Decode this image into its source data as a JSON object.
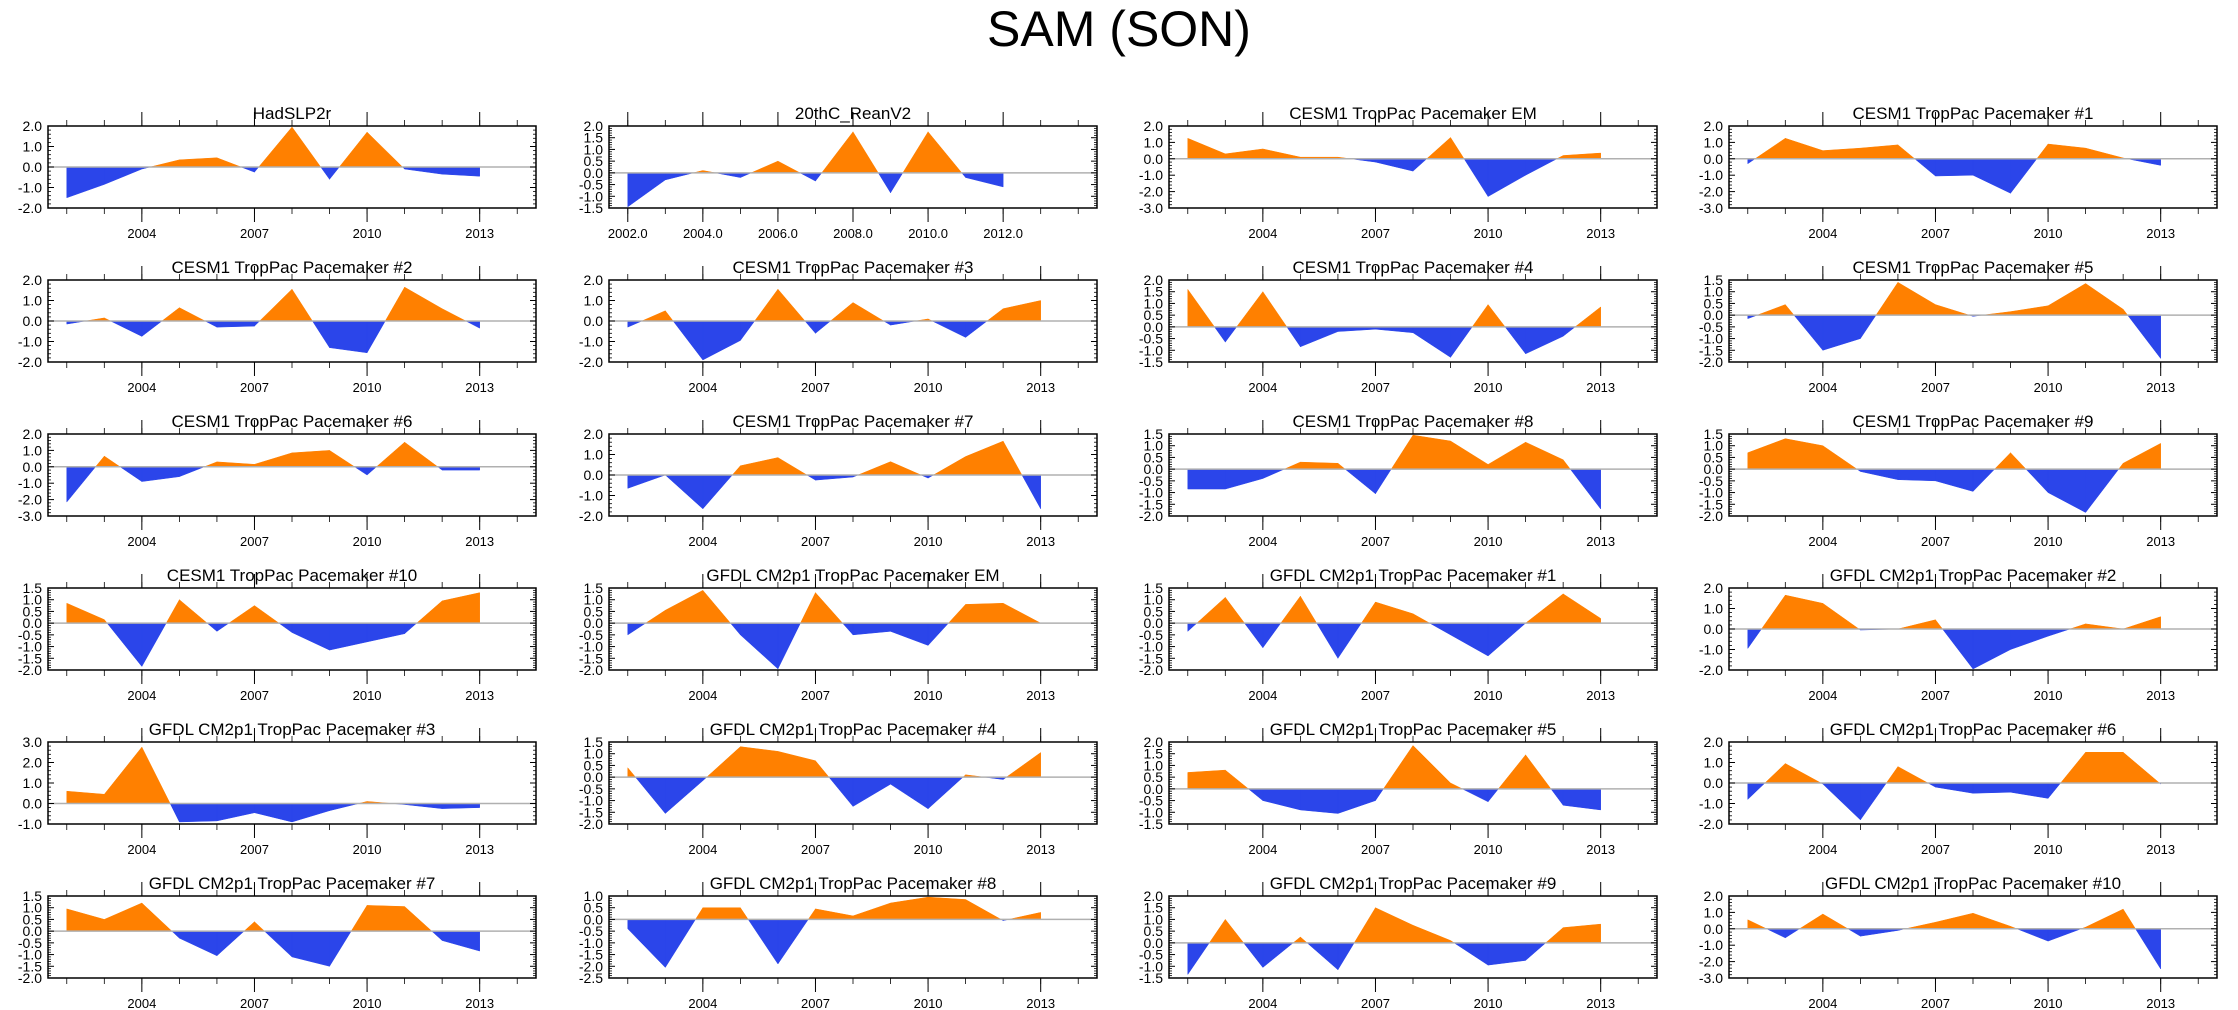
{
  "title": "SAM (SON)",
  "colors": {
    "positive": "#ff8000",
    "negative": "#2b45ea",
    "axis": "#000000",
    "zero_line": "#b0b0b0"
  },
  "chart_data": {
    "type": "area",
    "title": "SAM (SON)",
    "layout": "6 rows x 4 columns",
    "x": [
      2002,
      2003,
      2004,
      2005,
      2006,
      2007,
      2008,
      2009,
      2010,
      2011,
      2012,
      2013
    ],
    "xlim": [
      2001.5,
      2014.5
    ],
    "fill_above_zero": "orange",
    "fill_below_zero": "blue",
    "panels": [
      {
        "title": "HadSLP2r",
        "ylim": [
          -2.0,
          2.0
        ],
        "yticks": [
          "2.0",
          "1.0",
          "0.0",
          "-1.0",
          "-2.0"
        ],
        "xticks": [
          "2004",
          "2007",
          "2010",
          "2013"
        ],
        "values": [
          -1.5,
          -0.85,
          -0.1,
          0.35,
          0.45,
          -0.25,
          1.95,
          -0.6,
          1.7,
          -0.1,
          -0.35,
          -0.45
        ]
      },
      {
        "title": "20thC_ReanV2",
        "ylim": [
          -1.5,
          2.0
        ],
        "yticks": [
          "2.0",
          "1.5",
          "1.0",
          "0.5",
          "0.0",
          "-0.5",
          "-1.0",
          "-1.5"
        ],
        "xticks": [
          "2002.0",
          "2004.0",
          "2006.0",
          "2008.0",
          "2010.0",
          "2012.0"
        ],
        "values": [
          -1.45,
          -0.3,
          0.1,
          -0.2,
          0.5,
          -0.35,
          1.75,
          -0.85,
          1.75,
          -0.2,
          -0.6
        ]
      },
      {
        "title": "CESM1 TropPac Pacemaker EM",
        "ylim": [
          -3.0,
          2.0
        ],
        "yticks": [
          "2.0",
          "1.0",
          "0.0",
          "-1.0",
          "-2.0",
          "-3.0"
        ],
        "xticks": [
          "2004",
          "2007",
          "2010",
          "2013"
        ],
        "values": [
          1.25,
          0.3,
          0.6,
          0.1,
          0.1,
          -0.2,
          -0.75,
          1.3,
          -2.3,
          -1.0,
          0.2,
          0.35
        ]
      },
      {
        "title": "CESM1 TropPac Pacemaker #1",
        "ylim": [
          -3.0,
          2.0
        ],
        "yticks": [
          "2.0",
          "1.0",
          "0.0",
          "-1.0",
          "-2.0",
          "-3.0"
        ],
        "xticks": [
          "2004",
          "2007",
          "2010",
          "2013"
        ],
        "values": [
          -0.3,
          1.25,
          0.5,
          0.65,
          0.85,
          -1.05,
          -1.0,
          -2.1,
          0.9,
          0.65,
          0.05,
          -0.4
        ]
      },
      {
        "title": "CESM1 TropPac Pacemaker #2",
        "ylim": [
          -2.0,
          2.0
        ],
        "yticks": [
          "2.0",
          "1.0",
          "0.0",
          "-1.0",
          "-2.0"
        ],
        "xticks": [
          "2004",
          "2007",
          "2010",
          "2013"
        ],
        "values": [
          -0.15,
          0.15,
          -0.75,
          0.65,
          -0.3,
          -0.25,
          1.55,
          -1.3,
          -1.55,
          1.65,
          0.6,
          -0.35
        ]
      },
      {
        "title": "CESM1 TropPac Pacemaker #3",
        "ylim": [
          -2.0,
          2.0
        ],
        "yticks": [
          "2.0",
          "1.0",
          "0.0",
          "-1.0",
          "-2.0"
        ],
        "xticks": [
          "2004",
          "2007",
          "2010",
          "2013"
        ],
        "values": [
          -0.3,
          0.5,
          -1.9,
          -0.95,
          1.55,
          -0.6,
          0.9,
          -0.2,
          0.1,
          -0.8,
          0.6,
          1.0
        ]
      },
      {
        "title": "CESM1 TropPac Pacemaker #4",
        "ylim": [
          -1.5,
          2.0
        ],
        "yticks": [
          "2.0",
          "1.5",
          "1.0",
          "0.5",
          "0.0",
          "-0.5",
          "-1.0",
          "-1.5"
        ],
        "xticks": [
          "2004",
          "2007",
          "2010",
          "2013"
        ],
        "values": [
          1.6,
          -0.65,
          1.5,
          -0.85,
          -0.2,
          -0.1,
          -0.25,
          -1.3,
          0.95,
          -1.15,
          -0.4,
          0.85
        ]
      },
      {
        "title": "CESM1 TropPac Pacemaker #5",
        "ylim": [
          -2.0,
          1.5
        ],
        "yticks": [
          "1.5",
          "1.0",
          "0.5",
          "0.0",
          "-0.5",
          "-1.0",
          "-1.5",
          "-2.0"
        ],
        "xticks": [
          "2004",
          "2007",
          "2010",
          "2013"
        ],
        "values": [
          -0.15,
          0.45,
          -1.5,
          -1.0,
          1.4,
          0.45,
          -0.05,
          0.15,
          0.4,
          1.35,
          0.25,
          -1.85
        ]
      },
      {
        "title": "CESM1 TropPac Pacemaker #6",
        "ylim": [
          -3.0,
          2.0
        ],
        "yticks": [
          "2.0",
          "1.0",
          "0.0",
          "-1.0",
          "-2.0",
          "-3.0"
        ],
        "xticks": [
          "2004",
          "2007",
          "2010",
          "2013"
        ],
        "values": [
          -2.15,
          0.65,
          -0.9,
          -0.6,
          0.3,
          0.15,
          0.85,
          1.0,
          -0.5,
          1.5,
          -0.2,
          -0.2
        ]
      },
      {
        "title": "CESM1 TropPac Pacemaker #7",
        "ylim": [
          -2.0,
          2.0
        ],
        "yticks": [
          "2.0",
          "1.0",
          "0.0",
          "-1.0",
          "-2.0"
        ],
        "xticks": [
          "2004",
          "2007",
          "2010",
          "2013"
        ],
        "values": [
          -0.65,
          0.0,
          -1.65,
          0.45,
          0.85,
          -0.25,
          -0.1,
          0.65,
          -0.15,
          0.9,
          1.65,
          -1.65
        ]
      },
      {
        "title": "CESM1 TropPac Pacemaker #8",
        "ylim": [
          -2.0,
          1.5
        ],
        "yticks": [
          "1.5",
          "1.0",
          "0.5",
          "0.0",
          "-0.5",
          "-1.0",
          "-1.5",
          "-2.0"
        ],
        "xticks": [
          "2004",
          "2007",
          "2010",
          "2013"
        ],
        "values": [
          -0.85,
          -0.85,
          -0.4,
          0.3,
          0.25,
          -1.05,
          1.45,
          1.2,
          0.2,
          1.15,
          0.4,
          -1.7
        ]
      },
      {
        "title": "CESM1 TropPac Pacemaker #9",
        "ylim": [
          -2.0,
          1.5
        ],
        "yticks": [
          "1.5",
          "1.0",
          "0.5",
          "0.0",
          "-0.5",
          "-1.0",
          "-1.5",
          "-2.0"
        ],
        "xticks": [
          "2004",
          "2007",
          "2010",
          "2013"
        ],
        "values": [
          0.7,
          1.3,
          1.0,
          -0.1,
          -0.45,
          -0.5,
          -0.95,
          0.7,
          -1.0,
          -1.85,
          0.25,
          1.1
        ]
      },
      {
        "title": "CESM1 TropPac Pacemaker #10",
        "ylim": [
          -2.0,
          1.5
        ],
        "yticks": [
          "1.5",
          "1.0",
          "0.5",
          "0.0",
          "-0.5",
          "-1.0",
          "-1.5",
          "-2.0"
        ],
        "xticks": [
          "2004",
          "2007",
          "2010",
          "2013"
        ],
        "values": [
          0.85,
          0.15,
          -1.85,
          1.0,
          -0.35,
          0.75,
          -0.4,
          -1.15,
          -0.8,
          -0.45,
          0.95,
          1.3
        ]
      },
      {
        "title": "GFDL CM2p1 TropPac Pacemaker EM",
        "ylim": [
          -2.0,
          1.5
        ],
        "yticks": [
          "1.5",
          "1.0",
          "0.5",
          "0.0",
          "-0.5",
          "-1.0",
          "-1.5",
          "-2.0"
        ],
        "xticks": [
          "2004",
          "2007",
          "2010",
          "2013"
        ],
        "values": [
          -0.5,
          0.55,
          1.4,
          -0.5,
          -1.95,
          1.3,
          -0.5,
          -0.35,
          -0.95,
          0.8,
          0.85,
          0.0
        ]
      },
      {
        "title": "GFDL CM2p1 TropPac Pacemaker #1",
        "ylim": [
          -2.0,
          1.5
        ],
        "yticks": [
          "1.5",
          "1.0",
          "0.5",
          "0.0",
          "-0.5",
          "-1.0",
          "-1.5",
          "-2.0"
        ],
        "xticks": [
          "2004",
          "2007",
          "2010",
          "2013"
        ],
        "values": [
          -0.35,
          1.1,
          -1.05,
          1.15,
          -1.5,
          0.9,
          0.4,
          -0.5,
          -1.4,
          0.0,
          1.25,
          0.2
        ]
      },
      {
        "title": "GFDL CM2p1 TropPac Pacemaker #2",
        "ylim": [
          -2.0,
          2.0
        ],
        "yticks": [
          "2.0",
          "1.0",
          "0.0",
          "-1.0",
          "-2.0"
        ],
        "xticks": [
          "2004",
          "2007",
          "2010",
          "2013"
        ],
        "values": [
          -0.95,
          1.65,
          1.25,
          -0.05,
          0.0,
          0.45,
          -1.95,
          -1.0,
          -0.35,
          0.25,
          0.0,
          0.6
        ]
      },
      {
        "title": "GFDL CM2p1 TropPac Pacemaker #3",
        "ylim": [
          -1.0,
          3.0
        ],
        "yticks": [
          "3.0",
          "2.0",
          "1.0",
          "0.0",
          "-1.0"
        ],
        "xticks": [
          "2004",
          "2007",
          "2010",
          "2013"
        ],
        "values": [
          0.6,
          0.45,
          2.75,
          -0.9,
          -0.85,
          -0.45,
          -0.9,
          -0.35,
          0.1,
          -0.05,
          -0.25,
          -0.2
        ]
      },
      {
        "title": "GFDL CM2p1 TropPac Pacemaker #4",
        "ylim": [
          -2.0,
          1.5
        ],
        "yticks": [
          "1.5",
          "1.0",
          "0.5",
          "0.0",
          "-0.5",
          "-1.0",
          "-1.5",
          "-2.0"
        ],
        "xticks": [
          "2004",
          "2007",
          "2010",
          "2013"
        ],
        "values": [
          0.4,
          -1.55,
          -0.15,
          1.3,
          1.1,
          0.7,
          -1.25,
          -0.3,
          -1.35,
          0.1,
          -0.1,
          1.05
        ]
      },
      {
        "title": "GFDL CM2p1 TropPac Pacemaker #5",
        "ylim": [
          -1.5,
          2.0
        ],
        "yticks": [
          "2.0",
          "1.5",
          "1.0",
          "0.5",
          "0.0",
          "-0.5",
          "-1.0",
          "-1.5"
        ],
        "xticks": [
          "2004",
          "2007",
          "2010",
          "2013"
        ],
        "values": [
          0.7,
          0.8,
          -0.5,
          -0.9,
          -1.05,
          -0.5,
          1.85,
          0.25,
          -0.55,
          1.45,
          -0.7,
          -0.9
        ]
      },
      {
        "title": "GFDL CM2p1 TropPac Pacemaker #6",
        "ylim": [
          -2.0,
          2.0
        ],
        "yticks": [
          "2.0",
          "1.0",
          "0.0",
          "-1.0",
          "-2.0"
        ],
        "xticks": [
          "2004",
          "2007",
          "2010",
          "2013"
        ],
        "values": [
          -0.8,
          0.95,
          -0.05,
          -1.8,
          0.8,
          -0.2,
          -0.5,
          -0.45,
          -0.75,
          1.5,
          1.5,
          -0.05
        ]
      },
      {
        "title": "GFDL CM2p1 TropPac Pacemaker #7",
        "ylim": [
          -2.0,
          1.5
        ],
        "yticks": [
          "1.5",
          "1.0",
          "0.5",
          "0.0",
          "-0.5",
          "-1.0",
          "-1.5",
          "-2.0"
        ],
        "xticks": [
          "2004",
          "2007",
          "2010",
          "2013"
        ],
        "values": [
          0.95,
          0.5,
          1.2,
          -0.3,
          -1.05,
          0.4,
          -1.1,
          -1.5,
          1.1,
          1.05,
          -0.4,
          -0.85
        ]
      },
      {
        "title": "GFDL CM2p1 TropPac Pacemaker #8",
        "ylim": [
          -2.5,
          1.0
        ],
        "yticks": [
          "1.0",
          "0.5",
          "0.0",
          "-0.5",
          "-1.0",
          "-1.5",
          "-2.0",
          "-2.5"
        ],
        "xticks": [
          "2004",
          "2007",
          "2010",
          "2013"
        ],
        "values": [
          -0.4,
          -2.05,
          0.5,
          0.5,
          -1.9,
          0.45,
          0.15,
          0.7,
          0.95,
          0.85,
          -0.05,
          0.3
        ]
      },
      {
        "title": "GFDL CM2p1 TropPac Pacemaker #9",
        "ylim": [
          -1.5,
          2.0
        ],
        "yticks": [
          "2.0",
          "1.5",
          "1.0",
          "0.5",
          "0.0",
          "-0.5",
          "-1.0",
          "-1.5"
        ],
        "xticks": [
          "2004",
          "2007",
          "2010",
          "2013"
        ],
        "values": [
          -1.35,
          1.0,
          -1.05,
          0.25,
          -1.15,
          1.5,
          0.75,
          0.1,
          -0.95,
          -0.75,
          0.65,
          0.8
        ]
      },
      {
        "title": "GFDL CM2p1 TropPac Pacemaker #10",
        "ylim": [
          -3.0,
          2.0
        ],
        "yticks": [
          "2.0",
          "1.0",
          "0.0",
          "-1.0",
          "-2.0",
          "-3.0"
        ],
        "xticks": [
          "2004",
          "2007",
          "2010",
          "2013"
        ],
        "values": [
          0.55,
          -0.55,
          0.9,
          -0.45,
          -0.1,
          0.4,
          0.95,
          0.15,
          -0.75,
          0.1,
          1.2,
          -2.45
        ]
      }
    ]
  }
}
